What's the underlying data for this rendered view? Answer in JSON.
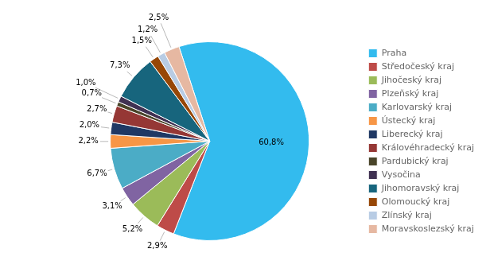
{
  "chart_data": {
    "type": "pie",
    "categories": [
      "Praha",
      "Středočeský kraj",
      "Jihočeský kraj",
      "Plzeňský kraj",
      "Karlovarský kraj",
      "Ústecký kraj",
      "Liberecký kraj",
      "Královéhradecký kraj",
      "Pardubický kraj",
      "Vysočina",
      "Jihomoravský kraj",
      "Olomoucký kraj",
      "Zlínský kraj",
      "Moravskoslezský kraj"
    ],
    "values": [
      60.8,
      2.9,
      5.2,
      3.1,
      6.7,
      2.2,
      2.0,
      2.7,
      0.7,
      1.0,
      7.3,
      1.5,
      1.2,
      2.5
    ],
    "value_labels": [
      "60,8%",
      "2,9%",
      "5,2%",
      "3,1%",
      "6,7%",
      "2,2%",
      "2,0%",
      "2,7%",
      "0,7%",
      "1,0%",
      "7,3%",
      "1,5%",
      "1,2%",
      "2,5%"
    ],
    "colors": [
      "#33BBEE",
      "#BE4B48",
      "#9BBB59",
      "#8064A2",
      "#4BACC6",
      "#F79646",
      "#1F3864",
      "#953735",
      "#494429",
      "#403152",
      "#17657D",
      "#974706",
      "#B8CCE4",
      "#E6B8A2"
    ],
    "data_labels": true,
    "legend": "right"
  }
}
